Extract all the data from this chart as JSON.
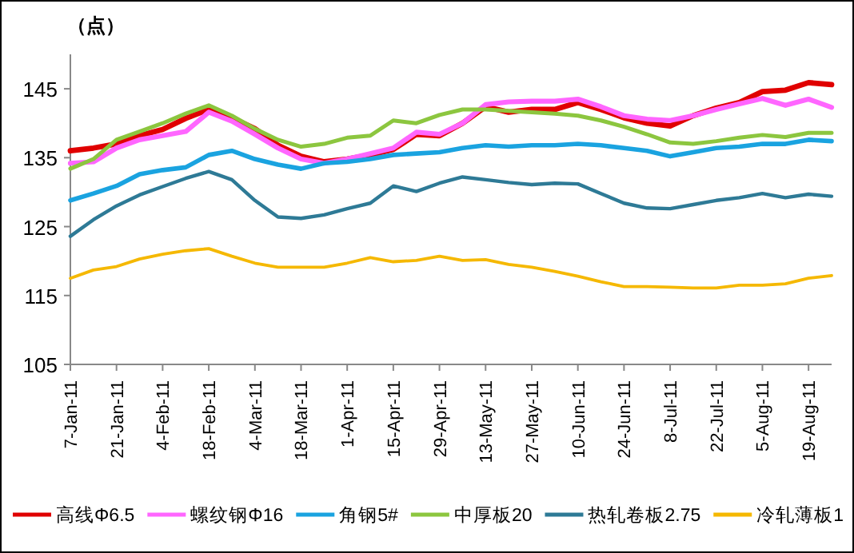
{
  "chart_data": {
    "type": "line",
    "ylabel": "（点）",
    "categories": [
      "7-Jan-11",
      null,
      "21-Jan-11",
      null,
      "4-Feb-11",
      null,
      "18-Feb-11",
      null,
      "4-Mar-11",
      null,
      "18-Mar-11",
      null,
      "1-Apr-11",
      null,
      "15-Apr-11",
      null,
      "29-Apr-11",
      null,
      "13-May-11",
      null,
      "27-May-11",
      null,
      "10-Jun-11",
      null,
      "24-Jun-11",
      null,
      "8-Jul-11",
      null,
      "22-Jul-11",
      null,
      "5-Aug-11",
      null,
      "19-Aug-11",
      null
    ],
    "series": [
      {
        "name": "高线Φ6.5",
        "color": "#e00000",
        "values": [
          136.0,
          136.4,
          137.0,
          138.2,
          139.1,
          140.7,
          142.0,
          140.8,
          139.2,
          136.8,
          135.2,
          134.4,
          134.8,
          135.4,
          136.2,
          138.4,
          138.2,
          140.0,
          142.4,
          141.6,
          142.0,
          142.0,
          143.0,
          142.0,
          140.8,
          140.0,
          139.6,
          141.1,
          142.2,
          143.0,
          144.6,
          144.8,
          145.9,
          145.6
        ]
      },
      {
        "name": "螺纹钢Φ16",
        "color": "#ff66ff",
        "values": [
          134.2,
          134.4,
          136.4,
          137.6,
          138.2,
          138.8,
          141.6,
          140.3,
          138.4,
          136.4,
          134.8,
          134.2,
          134.8,
          135.6,
          136.4,
          138.7,
          138.4,
          140.0,
          142.7,
          143.1,
          143.2,
          143.2,
          143.5,
          142.4,
          141.1,
          140.6,
          140.4,
          141.1,
          142.0,
          142.8,
          143.6,
          142.6,
          143.5,
          142.3
        ]
      },
      {
        "name": "角钢5#",
        "color": "#1aa3e0",
        "values": [
          128.8,
          129.8,
          130.9,
          132.6,
          133.2,
          133.6,
          135.4,
          136.0,
          134.8,
          134.0,
          133.4,
          134.2,
          134.4,
          134.8,
          135.4,
          135.6,
          135.8,
          136.4,
          136.8,
          136.6,
          136.8,
          136.8,
          137.0,
          136.8,
          136.4,
          136.0,
          135.2,
          135.8,
          136.4,
          136.6,
          137.0,
          137.0,
          137.6,
          137.4
        ]
      },
      {
        "name": "中厚板20",
        "color": "#8cc63f",
        "values": [
          133.4,
          134.8,
          137.6,
          138.8,
          140.0,
          141.4,
          142.6,
          141.1,
          139.2,
          137.6,
          136.6,
          137.0,
          137.9,
          138.2,
          140.4,
          140.0,
          141.2,
          142.0,
          142.0,
          141.8,
          141.6,
          141.4,
          141.1,
          140.4,
          139.5,
          138.4,
          137.2,
          137.0,
          137.4,
          137.9,
          138.3,
          138.0,
          138.6,
          138.6
        ]
      },
      {
        "name": "热轧卷板2.75",
        "color": "#2e7a96",
        "values": [
          123.6,
          126.0,
          128.0,
          129.6,
          130.8,
          132.0,
          133.0,
          131.8,
          128.8,
          126.4,
          126.2,
          126.7,
          127.6,
          128.4,
          130.9,
          130.1,
          131.3,
          132.2,
          131.8,
          131.4,
          131.1,
          131.3,
          131.2,
          129.8,
          128.4,
          127.7,
          127.6,
          128.2,
          128.8,
          129.2,
          129.8,
          129.2,
          129.7,
          129.4
        ]
      },
      {
        "name": "冷轧薄板1",
        "color": "#f5b800",
        "values": [
          117.5,
          118.7,
          119.2,
          120.3,
          121.0,
          121.5,
          121.8,
          120.7,
          119.7,
          119.1,
          119.1,
          119.1,
          119.7,
          120.5,
          119.9,
          120.1,
          120.7,
          120.1,
          120.2,
          119.5,
          119.1,
          118.5,
          117.8,
          117.0,
          116.3,
          116.3,
          116.2,
          116.1,
          116.1,
          116.5,
          116.5,
          116.7,
          117.5,
          117.9
        ]
      }
    ],
    "ylim": [
      105,
      150
    ],
    "yticks": [
      105,
      115,
      125,
      135,
      145
    ],
    "grid": false,
    "legend": "bottom",
    "marker": "none",
    "line_style": "solid"
  }
}
